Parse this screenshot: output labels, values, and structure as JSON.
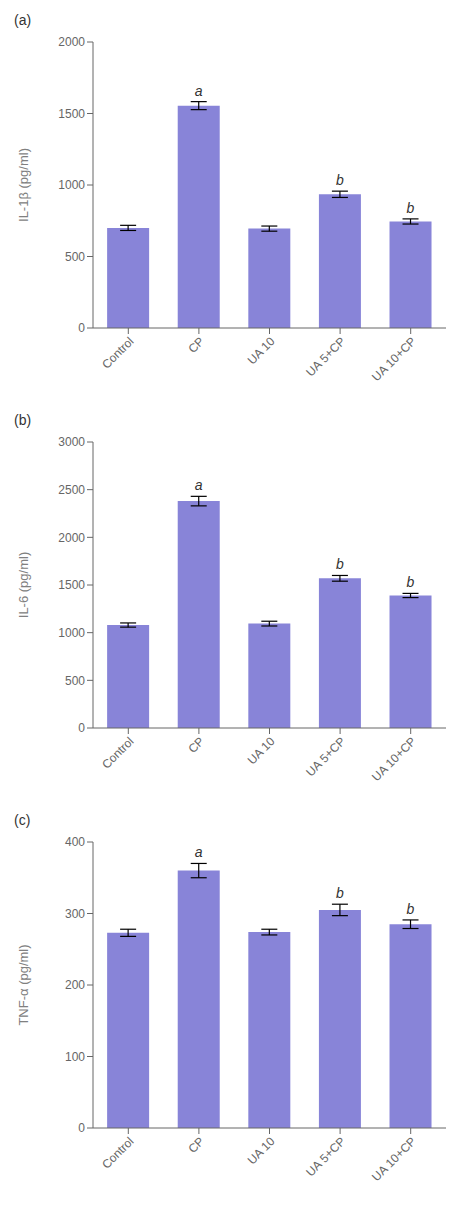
{
  "chart_data": [
    {
      "type": "bar",
      "title": "(a)",
      "ylabel": "IL-1β (pg/ml)",
      "categories": [
        "Control",
        "CP",
        "UA 10",
        "UA 5+CP",
        "UA 10+CP"
      ],
      "values": [
        700,
        1555,
        695,
        935,
        745
      ],
      "errors": [
        18,
        28,
        18,
        22,
        18
      ],
      "annotations": [
        null,
        "a",
        null,
        "b",
        "b"
      ],
      "ylim": [
        0,
        2000
      ],
      "yticks": [
        0,
        500,
        1000,
        1500,
        2000
      ],
      "grid": false
    },
    {
      "type": "bar",
      "title": "(b)",
      "ylabel": "IL-6 (pg/ml)",
      "categories": [
        "Control",
        "CP",
        "UA 10",
        "UA 5+CP",
        "UA 10+CP"
      ],
      "values": [
        1080,
        2380,
        1095,
        1570,
        1390
      ],
      "errors": [
        22,
        50,
        25,
        30,
        22
      ],
      "annotations": [
        null,
        "a",
        null,
        "b",
        "b"
      ],
      "ylim": [
        0,
        3000
      ],
      "yticks": [
        0,
        500,
        1000,
        1500,
        2000,
        2500,
        3000
      ],
      "grid": false
    },
    {
      "type": "bar",
      "title": "(c)",
      "ylabel": "TNF-α (pg/ml)",
      "categories": [
        "Control",
        "CP",
        "UA 10",
        "UA 5+CP",
        "UA 10+CP"
      ],
      "values": [
        273,
        360,
        274,
        305,
        285
      ],
      "errors": [
        5,
        10,
        4,
        8,
        6
      ],
      "annotations": [
        null,
        "a",
        null,
        "b",
        "b"
      ],
      "ylim": [
        0,
        400
      ],
      "yticks": [
        0,
        100,
        200,
        300,
        400
      ],
      "grid": false
    }
  ]
}
